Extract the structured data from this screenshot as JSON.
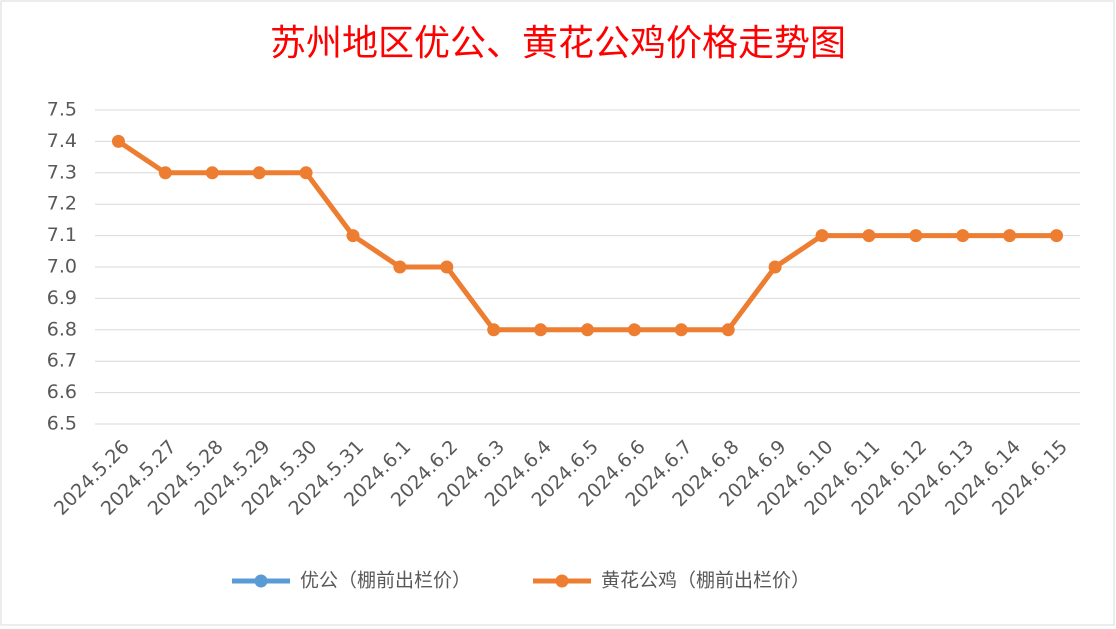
{
  "chart_data": {
    "type": "line",
    "title": "苏州地区优公、黄花公鸡价格走势图",
    "categories": [
      "2024.5.26",
      "2024.5.27",
      "2024.5.28",
      "2024.5.29",
      "2024.5.30",
      "2024.5.31",
      "2024.6.1",
      "2024.6.2",
      "2024.6.3",
      "2024.6.4",
      "2024.6.5",
      "2024.6.6",
      "2024.6.7",
      "2024.6.8",
      "2024.6.9",
      "2024.6.10",
      "2024.6.11",
      "2024.6.12",
      "2024.6.13",
      "2024.6.14",
      "2024.6.15"
    ],
    "series": [
      {
        "name": "优公（棚前出栏价）",
        "color": "#5b9bd5",
        "values": [
          null,
          null,
          null,
          null,
          null,
          null,
          null,
          null,
          null,
          null,
          null,
          null,
          null,
          null,
          null,
          null,
          null,
          null,
          null,
          null,
          null
        ]
      },
      {
        "name": "黄花公鸡（棚前出栏价）",
        "color": "#ed7d31",
        "values": [
          7.4,
          7.3,
          7.3,
          7.3,
          7.3,
          7.1,
          7.0,
          7.0,
          6.8,
          6.8,
          6.8,
          6.8,
          6.8,
          6.8,
          7.0,
          7.1,
          7.1,
          7.1,
          7.1,
          7.1,
          7.1
        ]
      }
    ],
    "ylim": [
      6.5,
      7.5
    ],
    "yticks": [
      6.5,
      6.6,
      6.7,
      6.8,
      6.9,
      {
        "value": 7,
        "label": "7.0"
      },
      7.1,
      7.2,
      7.3,
      7.4,
      7.5
    ],
    "grid": true,
    "legend": "bottom"
  }
}
